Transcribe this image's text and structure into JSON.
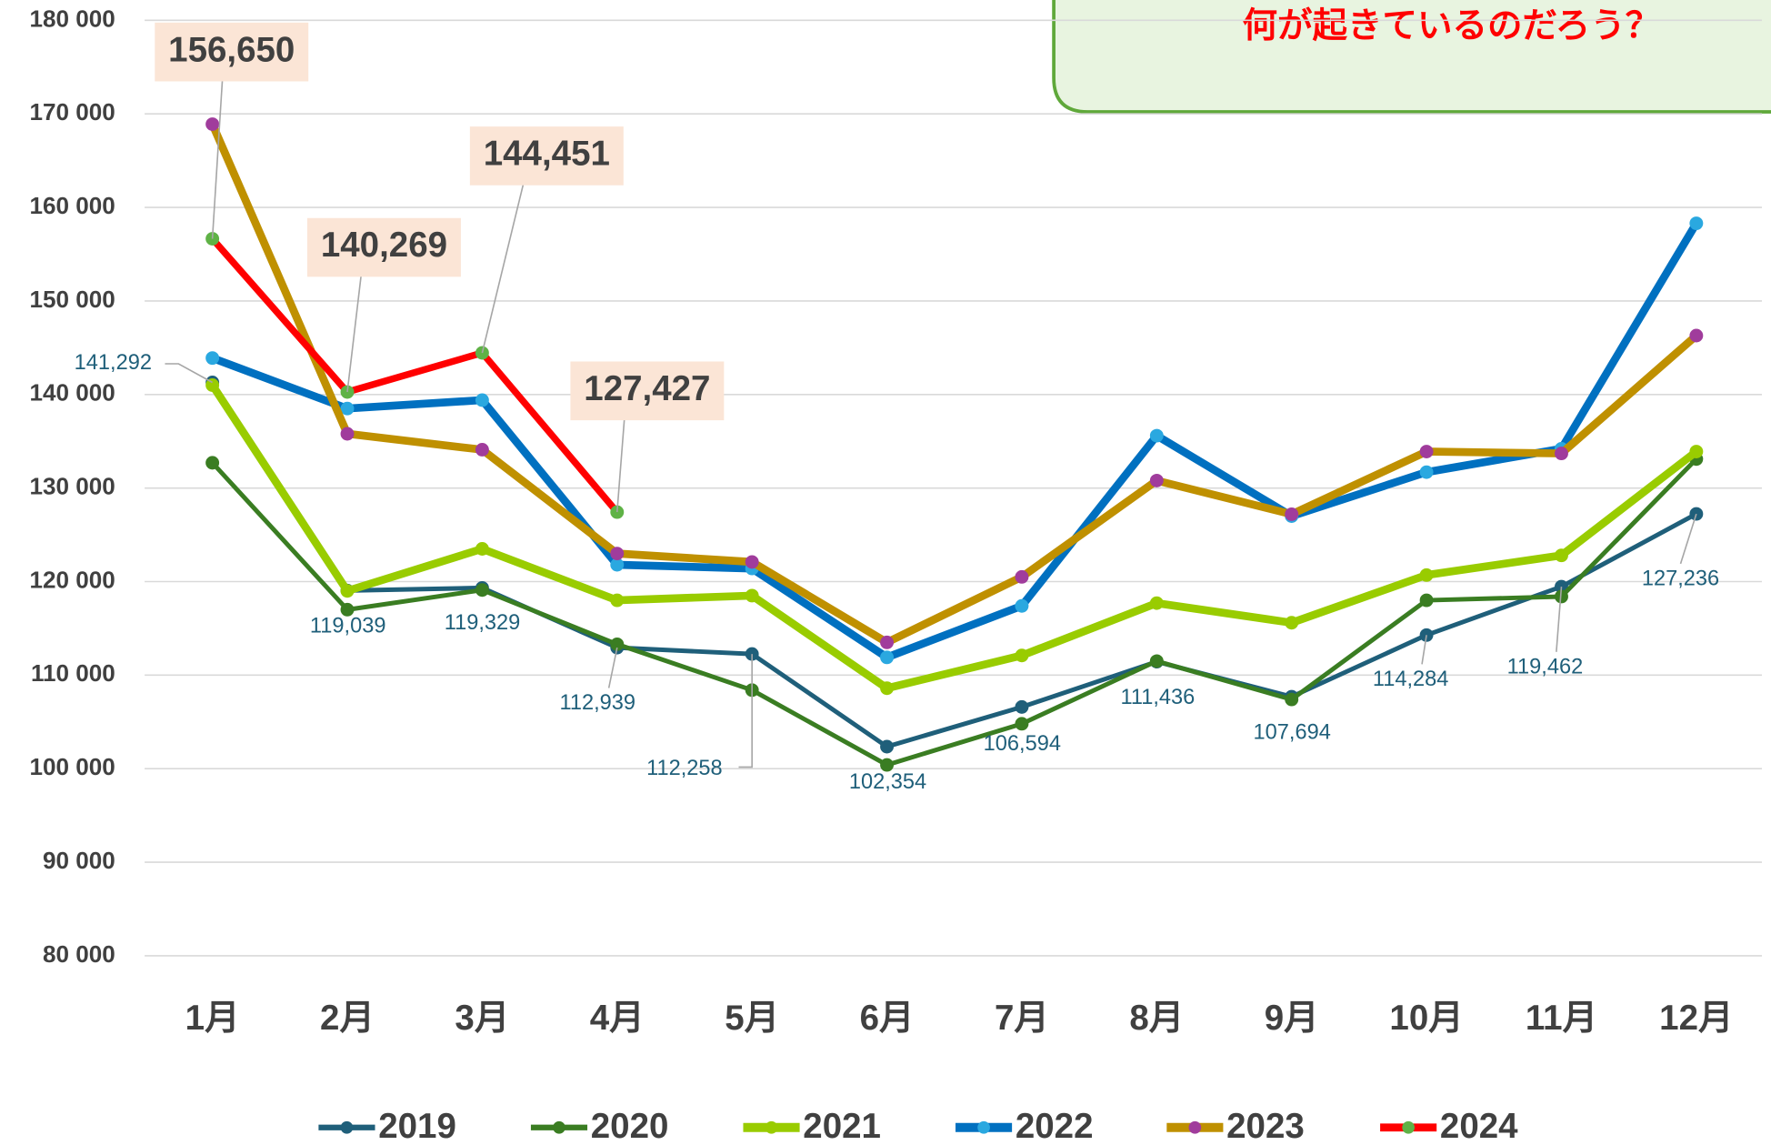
{
  "chart_data": {
    "type": "line",
    "annotation": "何が起きているのだろう？",
    "categories": [
      "1月",
      "2月",
      "3月",
      "4月",
      "5月",
      "6月",
      "7月",
      "8月",
      "9月",
      "10月",
      "11月",
      "12月"
    ],
    "ylim": [
      80000,
      180000
    ],
    "yticks": [
      {
        "value": 80000,
        "label": "80 000"
      },
      {
        "value": 90000,
        "label": "90 000"
      },
      {
        "value": 100000,
        "label": "100 000"
      },
      {
        "value": 110000,
        "label": "110 000"
      },
      {
        "value": 120000,
        "label": "120 000"
      },
      {
        "value": 130000,
        "label": "130 000"
      },
      {
        "value": 140000,
        "label": "140 000"
      },
      {
        "value": 150000,
        "label": "150 000"
      },
      {
        "value": 160000,
        "label": "160 000"
      },
      {
        "value": 170000,
        "label": "170 000"
      },
      {
        "value": 180000,
        "label": "180 000"
      }
    ],
    "grid": true,
    "legend": "bottom",
    "series": [
      {
        "name": "2019",
        "color": "#1f5f7a",
        "marker_color": "#1f5f7a",
        "values": [
          141292,
          119039,
          119329,
          112939,
          112258,
          102354,
          106594,
          111436,
          107694,
          114284,
          119462,
          127236
        ],
        "value_labels": [
          "141,292",
          "119,039",
          "119,329",
          "112,939",
          "112,258",
          "102,354",
          "106,594",
          "111,436",
          "107,694",
          "114,284",
          "119,462",
          "127,236"
        ]
      },
      {
        "name": "2020",
        "color": "#3a7d22",
        "marker_color": "#3a7d22",
        "values": [
          132700,
          117000,
          119100,
          113300,
          108400,
          100400,
          104800,
          111500,
          107400,
          118000,
          118400,
          133100
        ]
      },
      {
        "name": "2021",
        "color": "#99cc00",
        "marker_color": "#99cc00",
        "values": [
          141000,
          119000,
          123500,
          118000,
          118500,
          108600,
          112100,
          117700,
          115600,
          120700,
          122800,
          133900
        ]
      },
      {
        "name": "2022",
        "color": "#0070c0",
        "marker_color": "#2aa8e0",
        "values": [
          143900,
          138500,
          139400,
          121800,
          121400,
          111900,
          117400,
          135600,
          127000,
          131700,
          134200,
          158300
        ]
      },
      {
        "name": "2023",
        "color": "#bf9000",
        "marker_color": "#a03c9c",
        "values": [
          168900,
          135800,
          134100,
          123000,
          122100,
          113500,
          120500,
          130800,
          127200,
          133900,
          133700,
          146300
        ]
      },
      {
        "name": "2024",
        "color": "#ff0000",
        "marker_color": "#5fb246",
        "values": [
          156650,
          140269,
          144451,
          127427,
          null,
          null,
          null,
          null,
          null,
          null,
          null,
          null
        ],
        "value_labels": [
          "156,650",
          "140,269",
          "144,451",
          "127,427",
          null,
          null,
          null,
          null,
          null,
          null,
          null,
          null
        ]
      }
    ]
  }
}
